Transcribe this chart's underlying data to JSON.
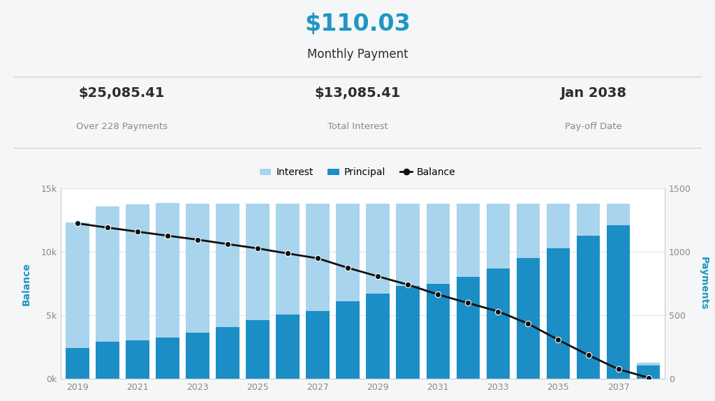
{
  "monthly_payment": "$110.03",
  "monthly_payment_label": "Monthly Payment",
  "stat1_value": "$25,085.41",
  "stat1_label": "Over 228 Payments",
  "stat2_value": "$13,085.41",
  "stat2_label": "Total Interest",
  "stat3_value": "Jan 2038",
  "stat3_label": "Pay-off Date",
  "years": [
    2019,
    2020,
    2021,
    2022,
    2023,
    2024,
    2025,
    2026,
    2027,
    2028,
    2029,
    2030,
    2031,
    2032,
    2033,
    2034,
    2035,
    2036,
    2037,
    2038
  ],
  "principal_payments": [
    2450,
    2950,
    3050,
    3250,
    3650,
    4100,
    4650,
    5050,
    5350,
    6100,
    6700,
    7350,
    7500,
    8050,
    8700,
    9500,
    10300,
    11300,
    12100,
    1050
  ],
  "interest_payments": [
    9850,
    10650,
    10700,
    10600,
    10150,
    9700,
    9150,
    8750,
    8450,
    7700,
    7100,
    6450,
    6300,
    5750,
    5100,
    4300,
    3500,
    2500,
    1700,
    220
  ],
  "balance": [
    1225,
    1192,
    1160,
    1128,
    1097,
    1062,
    1028,
    988,
    950,
    875,
    808,
    742,
    665,
    598,
    532,
    435,
    308,
    188,
    77,
    10
  ],
  "color_principal": "#1b8ec6",
  "color_interest": "#a8d4ed",
  "color_balance_line": "#111111",
  "color_blue_text": "#2196c4",
  "color_dark_text": "#2d2d2d",
  "color_gray_text": "#888888",
  "ylim_left": [
    0,
    15000
  ],
  "ylim_right": [
    0,
    1500
  ],
  "yticks_left": [
    0,
    5000,
    10000,
    15000
  ],
  "yticks_left_labels": [
    "0k",
    "5k",
    "10k",
    "15k"
  ],
  "yticks_right": [
    0,
    500,
    1000,
    1500
  ],
  "legend_labels": [
    "Interest",
    "Principal",
    "Balance"
  ],
  "bg_color": "#f5f6f8"
}
